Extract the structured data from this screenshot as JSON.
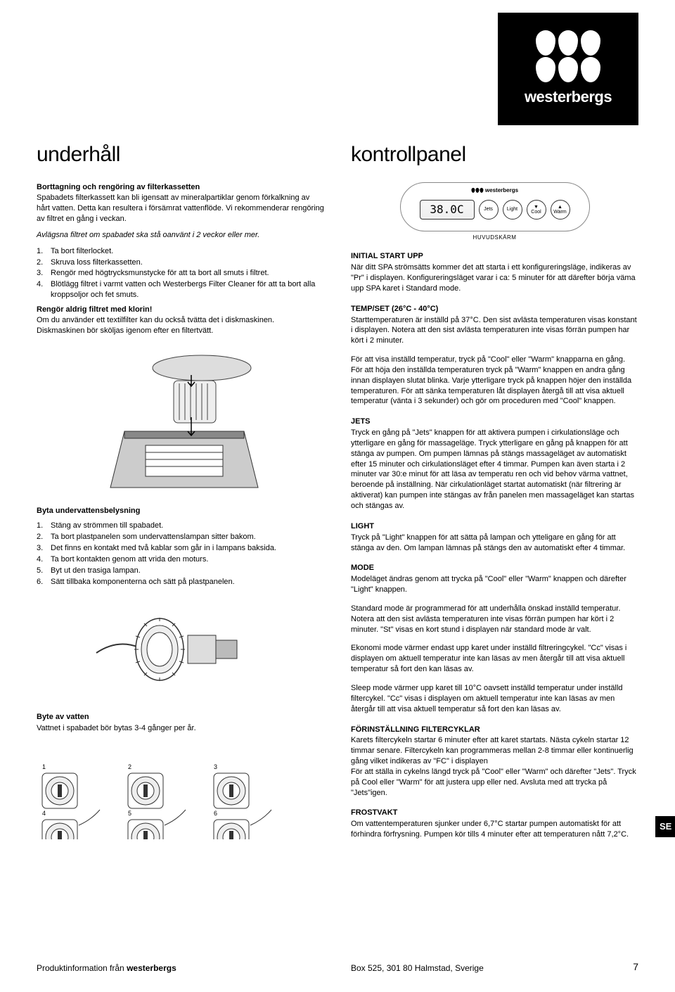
{
  "brand": "westerbergs",
  "lang_tab": "SE",
  "page_number": "7",
  "footer": {
    "left_prefix": "Produktinformation från ",
    "left_brand": "westerbergs",
    "right": "Box 525, 301 80 Halmstad, Sverige"
  },
  "left": {
    "title": "underhåll",
    "sec1_head": "Borttagning och rengöring av filterkassetten",
    "sec1_body": "Spabadets filterkassett kan bli igensatt av mineralpartiklar genom förkalkning av hårt vatten. Detta kan resultera i försämrat vattenflöde. Vi rekommenderar rengöring av filtret en gång i veckan.",
    "sec1_italic": "Avlägsna filtret om spabadet ska stå oanvänt i 2 veckor eller mer.",
    "list1": [
      "Ta bort filterlocket.",
      "Skruva loss filterkassetten.",
      "Rengör med högtrycksmunstycke för att ta bort all smuts i filtret.",
      "Blötlägg filtret i varmt vatten och Westerbergs Filter Cleaner för att ta bort alla kroppsoljor och fet smuts."
    ],
    "warn": "Rengör aldrig filtret med klorin!",
    "sec1_tail": "Om du använder ett textilfilter kan du också tvätta det i diskmaskinen. Diskmaskinen bör sköljas igenom efter en filtertvätt.",
    "sec2_head": "Byta undervattensbelysning",
    "list2": [
      "Stäng av strömmen till spabadet.",
      "Ta bort plastpanelen som undervattenslampan sitter bakom.",
      "Det finns en kontakt med två kablar som går in i lampans baksida.",
      "Ta bort kontakten genom att vrida den moturs.",
      "Byt ut den trasiga lampan.",
      "Sätt tillbaka komponenterna och sätt på plastpanelen."
    ],
    "sec3_head": "Byte av vatten",
    "sec3_body": "Vattnet i spabadet bör bytas 3-4 gånger per år."
  },
  "right": {
    "title": "kontrollpanel",
    "display_value": "38.0C",
    "buttons": [
      "Jets",
      "Light",
      "Cool",
      "Warm"
    ],
    "button_arrows": [
      "",
      "",
      "▼",
      "▲"
    ],
    "panel_caption": "HUVUDSKÄRM",
    "sections": [
      {
        "head": "INITIAL START UPP",
        "body": "När ditt SPA strömsätts kommer det att starta i ett konfigureringsläge, indikeras av \"Pr\" i displayen. Konfigureringsläget varar i ca: 5 minuter för att därefter börja väma upp SPA karet i Standard mode."
      },
      {
        "head": "TEMP/SET (26°C - 40°C)",
        "body": "Starttemperaturen är inställd på 37°C. Den sist avlästa temperaturen visas konstant i displayen. Notera att den sist avlästa temperaturen inte visas förrän pumpen har kört i 2 minuter."
      },
      {
        "head": "",
        "body": "För att visa inställd temperatur, tryck på \"Cool\" eller \"Warm\" knapparna en gång. För att höja den inställda temperaturen tryck på \"Warm\" knappen en andra gång innan displayen slutat blinka. Varje ytterligare tryck på knappen höjer den inställda temperaturen. För att sänka temperaturen låt displayen återgå till att visa aktuell temperatur (vänta i 3 sekunder) och gör om proceduren med \"Cool\" knappen."
      },
      {
        "head": "JETS",
        "body": "Tryck en gång på \"Jets\" knappen för att aktivera pumpen i cirkulationsläge och ytterligare en gång för massageläge. Tryck ytterligare en gång på knappen för att stänga av pumpen. Om pumpen lämnas på stängs massageläget av automatiskt efter 15 minuter och cirkulationsläget efter 4 timmar. Pumpen kan även starta i 2 minuter var 30:e minut för att läsa av temperatu ren och vid behov värma vattnet, beroende på inställning. När cirkulationläget startat automatiskt (när filtrering är aktiverat) kan pumpen inte stängas av från panelen men massageläget kan startas och stängas av."
      },
      {
        "head": "LIGHT",
        "body": "Tryck på \"Light\" knappen för att sätta på lampan och ytteligare en gång för att stänga av den. Om lampan lämnas på stängs den av automatiskt efter 4 timmar."
      },
      {
        "head": "MODE",
        "body": "Modeläget ändras genom att trycka på \"Cool\" eller \"Warm\" knappen och därefter \"Light\" knappen."
      },
      {
        "head": "",
        "body": "Standard mode är programmerad för att underhålla önskad inställd temperatur. Notera att den sist avlästa temperaturen inte visas förrän pumpen har kört i 2 minuter. \"St\" visas en kort stund i displayen när standard mode är valt."
      },
      {
        "head": "",
        "body": "Ekonomi mode värmer endast upp karet under inställd filtreringcykel. \"Cc\" visas i displayen om aktuell temperatur inte kan läsas av men återgår till att visa aktuell temperatur så fort den kan läsas av."
      },
      {
        "head": "",
        "body": "Sleep mode värmer upp karet till 10°C oavsett inställd temperatur under inställd filtercykel. \"Cc\" visas i displayen om aktuell temperatur inte kan läsas av men återgår till att visa aktuell temperatur så fort den kan läsas av."
      },
      {
        "head": "FÖRINSTÄLLNING FILTERCYKLAR",
        "body": "Karets filtercykeln startar 6 minuter efter att karet startats. Nästa cykeln startar 12 timmar senare. Filtercykeln kan programmeras mellan 2-8 timmar eller kontinuerlig gång vilket indikeras av \"FC\" i displayen\nFör att ställa in cykelns längd tryck på \"Cool\" eller \"Warm\" och därefter \"Jets\". Tryck på Cool eller \"Warm\" för att justera upp eller ned. Avsluta med att trycka på \"Jets\"igen."
      },
      {
        "head": "FROSTVAKT",
        "body": "Om vattentemperaturen sjunker under 6,7°C startar pumpen automatiskt för att förhindra förfrysning. Pumpen kör tills 4 minuter efter att temperaturen nått 7,2°C."
      }
    ]
  }
}
